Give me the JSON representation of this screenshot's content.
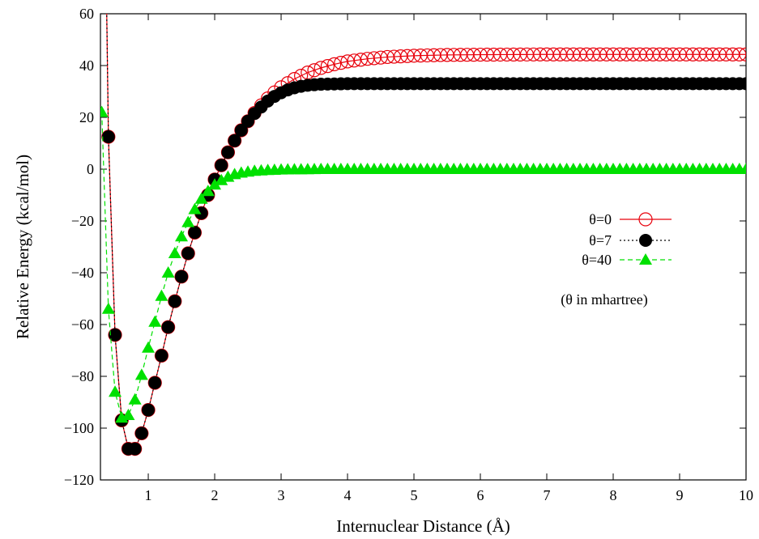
{
  "chart_data": {
    "type": "line",
    "xlabel": "Internuclear Distance (Å)",
    "ylabel": "Relative Energy (kcal/mol)",
    "xlim": [
      0.28,
      10
    ],
    "ylim": [
      -120,
      60
    ],
    "xticks": [
      1,
      2,
      3,
      4,
      5,
      6,
      7,
      8,
      9,
      10
    ],
    "yticks": [
      -120,
      -100,
      -80,
      -60,
      -40,
      -20,
      0,
      20,
      40,
      60
    ],
    "xtick_labels": [
      "1",
      "2",
      "3",
      "4",
      "5",
      "6",
      "7",
      "8",
      "9",
      "10"
    ],
    "ytick_labels": [
      "−120",
      "−100",
      "−80",
      "−60",
      "−40",
      "−20",
      "0",
      "20",
      "40",
      "60"
    ],
    "grid": false,
    "legend_position": "right",
    "annotation": "(θ in mhartree)",
    "x_sampling": {
      "start": 0.3,
      "step": 0.1,
      "end": 10.0
    },
    "series": [
      {
        "name": "θ=0",
        "color": "#e8000b",
        "marker": "open-circle",
        "line_style": "solid",
        "anchors": [
          [
            0.3,
            200
          ],
          [
            0.4,
            12.5
          ],
          [
            0.5,
            -64
          ],
          [
            0.6,
            -97
          ],
          [
            0.7,
            -108
          ],
          [
            0.8,
            -108
          ],
          [
            0.9,
            -102
          ],
          [
            1.0,
            -93
          ],
          [
            1.1,
            -82.5
          ],
          [
            1.2,
            -72
          ],
          [
            1.3,
            -61
          ],
          [
            1.4,
            -51
          ],
          [
            1.5,
            -41.5
          ],
          [
            1.6,
            -32.5
          ],
          [
            1.7,
            -24.5
          ],
          [
            1.8,
            -17
          ],
          [
            1.9,
            -10
          ],
          [
            2.0,
            -4
          ],
          [
            2.1,
            1.5
          ],
          [
            2.2,
            6.5
          ],
          [
            2.3,
            11
          ],
          [
            2.4,
            15
          ],
          [
            2.5,
            18.5
          ],
          [
            2.6,
            21.7
          ],
          [
            2.7,
            24.6
          ],
          [
            2.8,
            27.3
          ],
          [
            2.9,
            29.6
          ],
          [
            3.0,
            31.6
          ],
          [
            3.2,
            34.8
          ],
          [
            3.4,
            37.3
          ],
          [
            3.6,
            39.1
          ],
          [
            3.8,
            40.5
          ],
          [
            4.0,
            41.6
          ],
          [
            4.3,
            42.6
          ],
          [
            4.6,
            43.3
          ],
          [
            5.0,
            43.8
          ],
          [
            5.5,
            44.1
          ],
          [
            6.0,
            44.2
          ],
          [
            7.0,
            44.3
          ],
          [
            10.0,
            44.3
          ]
        ]
      },
      {
        "name": "θ=7",
        "color": "#000000",
        "marker": "filled-circle",
        "line_style": "dotted",
        "anchors": [
          [
            0.3,
            200
          ],
          [
            0.4,
            12.5
          ],
          [
            0.5,
            -64
          ],
          [
            0.6,
            -97
          ],
          [
            0.7,
            -108
          ],
          [
            0.8,
            -108
          ],
          [
            0.9,
            -102
          ],
          [
            1.0,
            -93
          ],
          [
            1.1,
            -82.5
          ],
          [
            1.2,
            -72
          ],
          [
            1.3,
            -61
          ],
          [
            1.4,
            -51
          ],
          [
            1.5,
            -41.5
          ],
          [
            1.6,
            -32.5
          ],
          [
            1.7,
            -24.5
          ],
          [
            1.8,
            -17
          ],
          [
            1.9,
            -10
          ],
          [
            2.0,
            -4
          ],
          [
            2.1,
            1.5
          ],
          [
            2.2,
            6.5
          ],
          [
            2.3,
            11
          ],
          [
            2.4,
            15
          ],
          [
            2.5,
            18.5
          ],
          [
            2.6,
            21.5
          ],
          [
            2.7,
            24
          ],
          [
            2.8,
            26.3
          ],
          [
            2.9,
            28.1
          ],
          [
            3.0,
            29.5
          ],
          [
            3.1,
            30.6
          ],
          [
            3.2,
            31.4
          ],
          [
            3.3,
            32
          ],
          [
            3.4,
            32.4
          ],
          [
            3.6,
            32.8
          ],
          [
            4.0,
            33
          ],
          [
            10.0,
            33
          ]
        ]
      },
      {
        "name": "θ=40",
        "color": "#00e000",
        "marker": "filled-triangle",
        "line_style": "dashed",
        "anchors": [
          [
            0.3,
            22
          ],
          [
            0.4,
            -54
          ],
          [
            0.5,
            -86
          ],
          [
            0.6,
            -96
          ],
          [
            0.7,
            -95
          ],
          [
            0.8,
            -89
          ],
          [
            0.9,
            -79.5
          ],
          [
            1.0,
            -69
          ],
          [
            1.1,
            -59
          ],
          [
            1.2,
            -49
          ],
          [
            1.3,
            -40
          ],
          [
            1.4,
            -32.5
          ],
          [
            1.5,
            -26
          ],
          [
            1.6,
            -20.5
          ],
          [
            1.7,
            -15.5
          ],
          [
            1.8,
            -11.5
          ],
          [
            1.9,
            -8.5
          ],
          [
            2.0,
            -6
          ],
          [
            2.1,
            -4.3
          ],
          [
            2.2,
            -3
          ],
          [
            2.3,
            -2
          ],
          [
            2.4,
            -1.4
          ],
          [
            2.5,
            -1
          ],
          [
            2.6,
            -0.7
          ],
          [
            2.8,
            -0.4
          ],
          [
            3.0,
            -0.2
          ],
          [
            3.3,
            -0.1
          ],
          [
            3.6,
            0
          ],
          [
            10.0,
            0
          ]
        ]
      }
    ]
  }
}
